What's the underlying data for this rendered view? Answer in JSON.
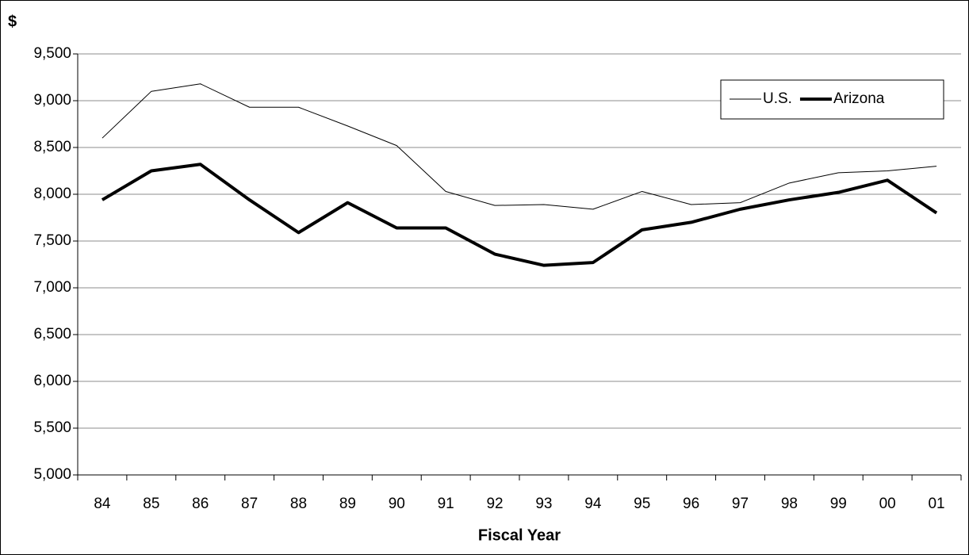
{
  "chart_data": {
    "type": "line",
    "y_axis_label": "$",
    "x_axis_label": "Fiscal Year",
    "categories": [
      "84",
      "85",
      "86",
      "87",
      "88",
      "89",
      "90",
      "91",
      "92",
      "93",
      "94",
      "95",
      "96",
      "97",
      "98",
      "99",
      "00",
      "01"
    ],
    "series": [
      {
        "name": "U.S.",
        "color": "#000000",
        "width": 1,
        "values": [
          8600,
          9100,
          9180,
          8930,
          8930,
          8730,
          8520,
          8030,
          7880,
          7890,
          7840,
          8030,
          7890,
          7910,
          8120,
          8230,
          8250,
          8300
        ]
      },
      {
        "name": "Arizona",
        "color": "#000000",
        "width": 4,
        "values": [
          7940,
          8250,
          8320,
          7940,
          7590,
          7910,
          7640,
          7640,
          7360,
          7240,
          7270,
          7620,
          7700,
          7840,
          7940,
          8020,
          8150,
          7800
        ]
      }
    ],
    "ylim": [
      5000,
      9500
    ],
    "yticks": [
      {
        "value": 5000,
        "label": "5,000"
      },
      {
        "value": 5500,
        "label": "5,500"
      },
      {
        "value": 6000,
        "label": "6,000"
      },
      {
        "value": 6500,
        "label": "6,500"
      },
      {
        "value": 7000,
        "label": "7,000"
      },
      {
        "value": 7500,
        "label": "7,500"
      },
      {
        "value": 8000,
        "label": "8,000"
      },
      {
        "value": 8500,
        "label": "8,500"
      },
      {
        "value": 9000,
        "label": "9,000"
      },
      {
        "value": 9500,
        "label": "9,500"
      }
    ],
    "grid": true,
    "legend_position": "upper-right"
  }
}
